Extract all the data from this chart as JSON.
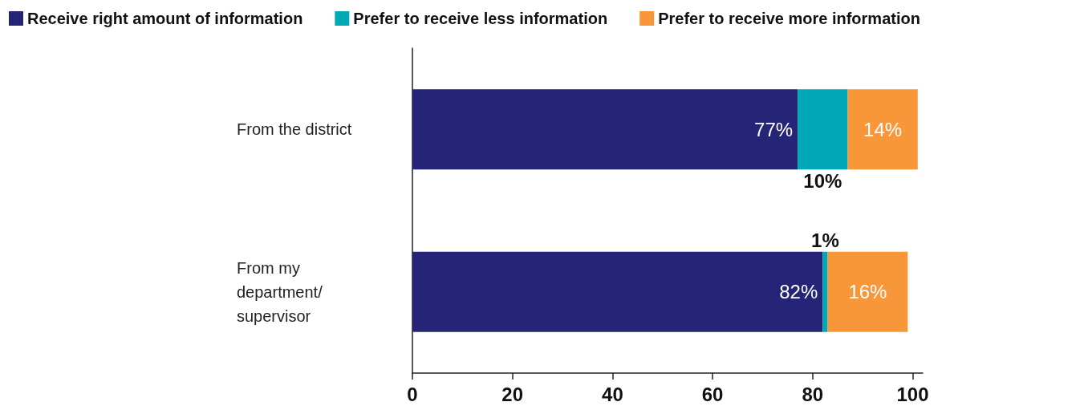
{
  "chart_data": {
    "type": "bar",
    "orientation": "horizontal",
    "stacked": true,
    "categories": [
      "From the district",
      "From my department/ supervisor"
    ],
    "series": [
      {
        "name": "Receive right amount of information",
        "color": "#262477",
        "values": [
          77,
          82
        ],
        "value_labels": [
          "77%",
          "82%"
        ]
      },
      {
        "name": "Prefer to receive less information",
        "color": "#00a9b5",
        "values": [
          10,
          1
        ],
        "value_labels": [
          "10%",
          "1%"
        ]
      },
      {
        "name": "Prefer to receive more information",
        "color": "#f7973a",
        "values": [
          14,
          16
        ],
        "value_labels": [
          "14%",
          "16%"
        ]
      }
    ],
    "xlim": [
      0,
      102
    ],
    "xticks": [
      0,
      20,
      40,
      60,
      80,
      100
    ],
    "grid": false,
    "legend": "top left"
  }
}
